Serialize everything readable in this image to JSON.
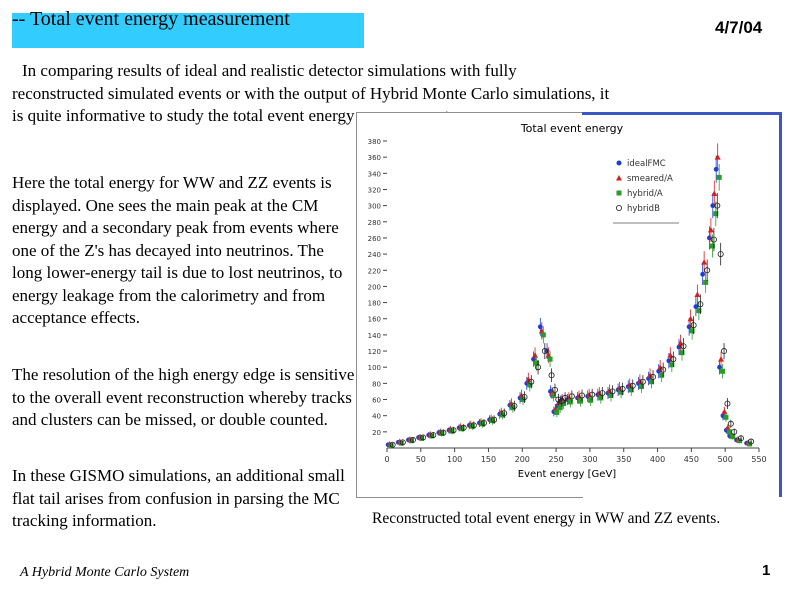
{
  "slide": {
    "title": "-- Total event energy measurement",
    "date": "4/7/04",
    "intro_first": "In comparing results of ideal and realistic detector simulations with fully",
    "intro_rest": "reconstructed simulated events or with the output of Hybrid Monte Carlo simulations, it is quite informative to study the total event energy measurement.",
    "para2": "Here the total energy for WW and ZZ events is displayed. One sees the main peak at the CM energy and a secondary peak from events where one of the Z's has decayed into neutrinos. The long lower-energy tail is due to lost neutrinos, to energy leakage from the calorimetry and from acceptance effects.",
    "para3": "The resolution of the high energy edge is sensitive to the overall event reconstruction whereby tracks and clusters can be missed, or double counted.",
    "para4": "In these GISMO simulations, an additional small flat tail arises from confusion in parsing the MC tracking information.",
    "caption": "Reconstructed total event energy in WW and ZZ events.",
    "footer": "A Hybrid Monte Carlo System",
    "page_number": "1"
  },
  "chart_data": {
    "type": "scatter",
    "title": "Total event energy",
    "xlabel": "Event energy [GeV]",
    "ylabel": "",
    "xlim": [
      0,
      550
    ],
    "ylim": [
      0,
      380
    ],
    "xticks": [
      0,
      50,
      100,
      150,
      200,
      250,
      300,
      350,
      400,
      450,
      500,
      550
    ],
    "yticks": [
      20,
      40,
      60,
      80,
      100,
      120,
      140,
      160,
      180,
      200,
      220,
      240,
      260,
      280,
      300,
      320,
      340,
      360,
      380
    ],
    "legend_position": "top-right",
    "grid": false,
    "x": [
      5,
      20,
      35,
      50,
      65,
      80,
      95,
      110,
      125,
      140,
      155,
      170,
      185,
      200,
      210,
      220,
      230,
      240,
      245,
      250,
      255,
      260,
      270,
      285,
      300,
      315,
      330,
      345,
      360,
      375,
      390,
      405,
      420,
      435,
      450,
      460,
      470,
      480,
      485,
      490,
      495,
      500,
      505,
      510,
      520,
      535
    ],
    "series": [
      {
        "name": "idealFMC",
        "color": "#1a3fd6",
        "marker": "circle",
        "values": [
          4,
          7,
          10,
          13,
          16,
          19,
          22,
          25,
          28,
          31,
          35,
          42,
          53,
          62,
          80,
          110,
          150,
          120,
          70,
          45,
          52,
          58,
          60,
          62,
          64,
          66,
          68,
          72,
          76,
          80,
          86,
          95,
          108,
          125,
          150,
          175,
          215,
          260,
          300,
          345,
          100,
          40,
          22,
          15,
          10,
          6
        ]
      },
      {
        "name": "smeared/A",
        "color": "#d42020",
        "marker": "triangle",
        "values": [
          5,
          8,
          11,
          14,
          17,
          20,
          23,
          26,
          29,
          32,
          36,
          44,
          55,
          65,
          85,
          115,
          145,
          115,
          68,
          48,
          55,
          60,
          62,
          64,
          66,
          68,
          71,
          74,
          78,
          83,
          90,
          100,
          115,
          130,
          160,
          190,
          230,
          270,
          315,
          360,
          110,
          45,
          25,
          16,
          11,
          7
        ]
      },
      {
        "name": "hybrid/A",
        "color": "#2a9a2a",
        "marker": "square",
        "values": [
          3,
          6,
          9,
          12,
          15,
          18,
          21,
          24,
          27,
          30,
          34,
          41,
          50,
          60,
          78,
          105,
          140,
          110,
          65,
          44,
          50,
          55,
          57,
          58,
          59,
          62,
          65,
          69,
          72,
          76,
          82,
          90,
          103,
          118,
          145,
          170,
          205,
          250,
          290,
          335,
          95,
          38,
          20,
          14,
          9,
          5
        ]
      },
      {
        "name": "hybridB",
        "color": "#202020",
        "marker": "circle-open",
        "values": [
          4,
          7,
          10,
          13,
          16,
          19,
          22,
          25,
          28,
          31,
          35,
          43,
          52,
          63,
          82,
          100,
          120,
          90,
          72,
          60,
          58,
          62,
          64,
          65,
          66,
          68,
          70,
          73,
          77,
          82,
          88,
          97,
          110,
          126,
          152,
          178,
          220,
          258,
          300,
          240,
          120,
          55,
          30,
          20,
          12,
          8
        ]
      }
    ]
  }
}
